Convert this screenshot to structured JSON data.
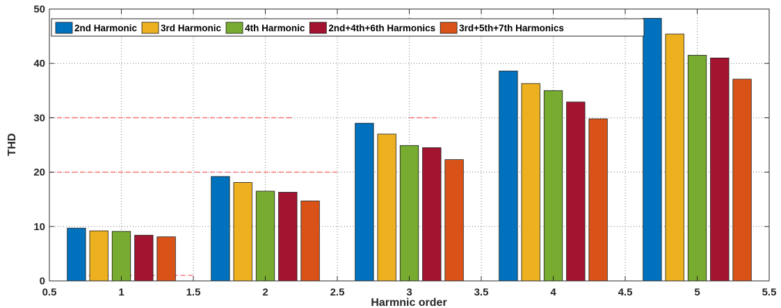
{
  "chart_data": {
    "type": "bar",
    "title": "",
    "xlabel": "Harmnic order",
    "ylabel": "THD",
    "xlim": [
      0.5,
      5.5
    ],
    "ylim": [
      0,
      50
    ],
    "xticks": [
      "0.5",
      "1",
      "1.5",
      "2",
      "2.5",
      "3",
      "3.5",
      "4",
      "4.5",
      "5",
      "5.5"
    ],
    "yticks": [
      "0",
      "10",
      "20",
      "30",
      "40",
      "50"
    ],
    "grid": true,
    "legend_position": "top",
    "categories": [
      1,
      2,
      3,
      4,
      5
    ],
    "series": [
      {
        "name": "2nd Harmonic",
        "color": "#0072BD",
        "values": [
          9.7,
          19.2,
          29.0,
          38.6,
          48.3
        ]
      },
      {
        "name": "3rd Harmonic",
        "color": "#EDB120",
        "values": [
          9.2,
          18.1,
          27.0,
          36.3,
          45.4
        ]
      },
      {
        "name": "4th Harmonic",
        "color": "#77AC30",
        "values": [
          9.1,
          16.5,
          24.9,
          35.0,
          41.5
        ]
      },
      {
        "name": "2nd+4th+6th Harmonics",
        "color": "#A2142F",
        "values": [
          8.4,
          16.3,
          24.5,
          32.9,
          41.0
        ]
      },
      {
        "name": "3rd+5th+7th Harmonics",
        "color": "#D95319",
        "values": [
          8.1,
          14.7,
          22.3,
          29.8,
          37.1
        ]
      }
    ],
    "reference_lines_color": "#ff3b3b"
  }
}
